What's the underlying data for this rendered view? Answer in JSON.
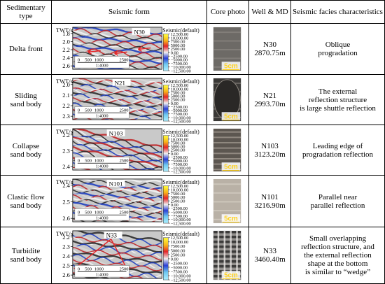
{
  "headers": {
    "type": "Sedimentary type",
    "seismic": "Seismic form",
    "core": "Core photo",
    "well": "Well & MD",
    "facies": "Seismic facies characteristics"
  },
  "seismic_common": {
    "axis_label": "TWT/s",
    "scale_ticks": [
      "0",
      "500",
      "1000",
      "2500"
    ],
    "scale_ratio": "1:4000",
    "legend_title": "Seismic(default)",
    "legend_values": [
      "12,500.00",
      "10,000.00",
      "7500.00",
      "5000.00",
      "2500.00",
      "0.00",
      "−2500.00",
      "−5000.00",
      "−7500.00",
      "−10,000.00",
      "−12,500.00"
    ],
    "core_scale": "5cm"
  },
  "rows": [
    {
      "type_lines": [
        "Delta front"
      ],
      "well": "N30",
      "md": "2870.75m",
      "facies_lines": [
        "Oblique",
        "progradation"
      ],
      "twt_ticks": [
        "1.8",
        "2.0",
        "2.2",
        "2.4",
        "2.6"
      ],
      "core_tone": "gray"
    },
    {
      "type_lines": [
        "Sliding",
        "sand body"
      ],
      "well": "N21",
      "md": "2993.70m",
      "facies_lines": [
        "The external",
        "reflection structure",
        "is large shuttle reflection"
      ],
      "twt_ticks": [
        "2.0",
        "2.1",
        "2.2",
        "2.3"
      ],
      "core_tone": "dark"
    },
    {
      "type_lines": [
        "Collapse",
        "sand body"
      ],
      "well": "N103",
      "md": "3123.20m",
      "facies_lines": [
        "Leading edge of",
        "progradation reflection"
      ],
      "twt_ticks": [
        "2.2",
        "2.3",
        "2.4"
      ],
      "core_tone": "banded"
    },
    {
      "type_lines": [
        "Clastic flow",
        "sand body"
      ],
      "well": "N101",
      "md": "3216.90m",
      "facies_lines": [
        "Parallel near",
        "parallel reflection"
      ],
      "twt_ticks": [
        "2.4",
        "2.5",
        "2.6"
      ],
      "core_tone": "light"
    },
    {
      "type_lines": [
        "Turbidite",
        "sand body"
      ],
      "well": "N33",
      "md": "3460.40m",
      "facies_lines": [
        "Small overlapping",
        "reflection structure, and",
        "the external reflection",
        "shape at the bottom",
        "is similar to “wedge”"
      ],
      "twt_ticks": [
        "2.2",
        "2.3",
        "2.4",
        "2.5",
        "2.6"
      ],
      "core_tone": "stripes"
    }
  ]
}
